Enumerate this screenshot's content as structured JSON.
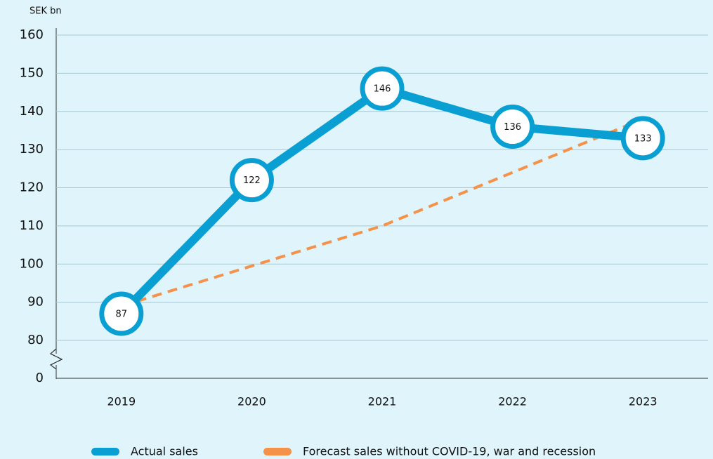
{
  "chart_data": {
    "type": "line",
    "y_label": "SEK bn",
    "categories": [
      "2019",
      "2020",
      "2021",
      "2022",
      "2023"
    ],
    "series": [
      {
        "name": "Actual sales",
        "color": "#0a9fd2",
        "values": [
          87,
          122,
          146,
          136,
          133
        ]
      },
      {
        "name": "Forecast sales without COVID-19, war and recession",
        "color": "#f5924a",
        "dashed": true,
        "values": [
          89,
          99.5,
          110,
          124,
          138
        ]
      }
    ],
    "ylim": [
      0,
      160
    ],
    "axis_break": [
      0,
      80
    ],
    "yticks": [
      0,
      80,
      90,
      100,
      110,
      120,
      130,
      140,
      150,
      160
    ],
    "grid": true,
    "legend": "bottom"
  }
}
